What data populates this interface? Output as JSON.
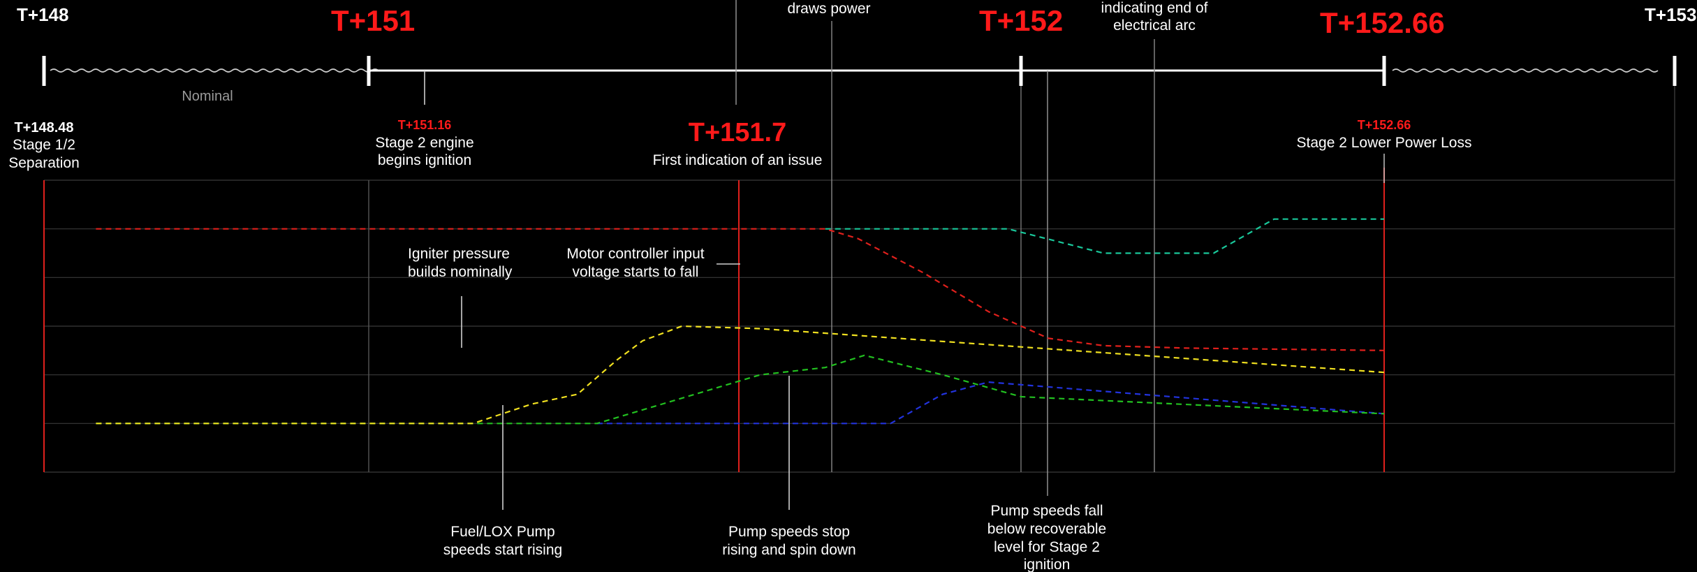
{
  "timeline": {
    "markers": [
      {
        "id": "t148",
        "label": "T+148",
        "emphasis": false
      },
      {
        "id": "t151",
        "label": "T+151",
        "emphasis": true
      },
      {
        "id": "t152",
        "label": "T+152",
        "emphasis": true
      },
      {
        "id": "t15266",
        "label": "T+152.66",
        "emphasis": true
      },
      {
        "id": "t153",
        "label": "T+153",
        "emphasis": false
      }
    ],
    "nominal_label": "Nominal"
  },
  "events": [
    {
      "id": "sep",
      "time": "T+148.48",
      "text": [
        "Stage 1/2",
        "Separation"
      ],
      "time_color": "#ffffff"
    },
    {
      "id": "ignite",
      "time": "T+151.16",
      "text": [
        "Stage 2 engine",
        "begins ignition"
      ],
      "time_color": "#ff1a1a"
    },
    {
      "id": "issue",
      "time": "T+151.7",
      "text": [
        "First indication of an issue"
      ],
      "time_color": "#ff1a1a"
    },
    {
      "id": "powerloss",
      "time": "T+152.66",
      "text": [
        "Stage 2 Lower Power Loss"
      ],
      "time_color": "#ff1a1a"
    }
  ],
  "top_clipped_annotations": [
    {
      "id": "draws-power",
      "lines": [
        "draws power"
      ]
    },
    {
      "id": "arc-end",
      "lines": [
        "indicating end of",
        "electrical arc"
      ]
    }
  ],
  "chart_annotations": [
    {
      "id": "igniter",
      "lines": [
        "Igniter pressure",
        "builds nominally"
      ]
    },
    {
      "id": "motor",
      "lines": [
        "Motor controller input",
        "voltage starts to fall"
      ]
    },
    {
      "id": "fuel-lox",
      "lines": [
        "Fuel/LOX Pump",
        "speeds start rising"
      ]
    },
    {
      "id": "pump-stop",
      "lines": [
        "Pump speeds stop",
        "rising and spin down"
      ]
    },
    {
      "id": "pump-fall",
      "lines": [
        "Pump speeds fall",
        "below recoverable",
        "level for Stage 2",
        "ignition"
      ]
    }
  ],
  "colors": {
    "emphasis": "#ff1a1a",
    "grid": "#3a3a3a",
    "red_series": "#e0201c",
    "teal_series": "#19c79a",
    "yellow_series": "#f0e020",
    "green_series": "#22c020",
    "blue_series": "#2233dd"
  },
  "chart_data": {
    "type": "line",
    "title": "",
    "xlabel": "",
    "ylabel": "",
    "xlim": [
      148,
      153
    ],
    "grid": true,
    "legend": "none",
    "series": [
      {
        "id": "red",
        "color": "#e0201c",
        "x": [
          148.48,
          151.7,
          151.75,
          151.85,
          151.95,
          152.05,
          152.15,
          152.3,
          152.66
        ],
        "y": [
          5,
          5,
          4.8,
          4.1,
          3.3,
          2.75,
          2.6,
          2.55,
          2.5
        ]
      },
      {
        "id": "teal",
        "color": "#19c79a",
        "x": [
          151.7,
          151.98,
          152.15,
          152.35,
          152.46,
          152.66
        ],
        "y": [
          5,
          5,
          4.5,
          4.5,
          5.2,
          5.2
        ]
      },
      {
        "id": "yellow",
        "color": "#f0e020",
        "x": [
          148.48,
          151.16,
          151.25,
          151.32,
          151.38,
          151.42,
          151.48,
          151.6,
          152.66
        ],
        "y": [
          1,
          1,
          1.4,
          1.6,
          2.3,
          2.7,
          3.0,
          2.95,
          2.05
        ]
      },
      {
        "id": "green",
        "color": "#22c020",
        "x": [
          148.48,
          151.16,
          151.35,
          151.45,
          151.6,
          151.7,
          151.76,
          151.88,
          152.0,
          152.66
        ],
        "y": [
          1,
          1,
          1,
          1.4,
          2.0,
          2.15,
          2.4,
          2.0,
          1.55,
          1.2
        ]
      },
      {
        "id": "blue",
        "color": "#2233dd",
        "x": [
          151.35,
          151.8,
          151.88,
          151.95,
          152.66
        ],
        "y": [
          1,
          1,
          1.6,
          1.85,
          1.2
        ]
      }
    ]
  }
}
